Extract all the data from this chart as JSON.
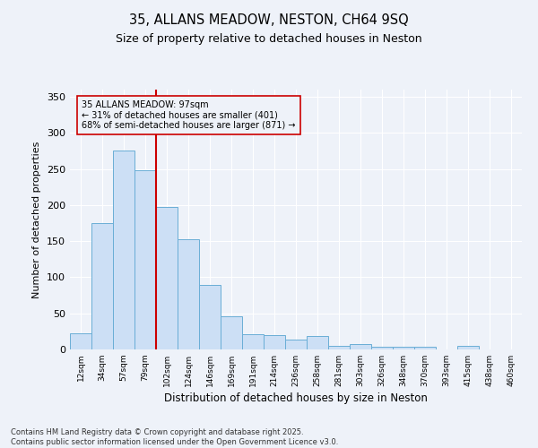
{
  "title_line1": "35, ALLANS MEADOW, NESTON, CH64 9SQ",
  "title_line2": "Size of property relative to detached houses in Neston",
  "xlabel": "Distribution of detached houses by size in Neston",
  "ylabel": "Number of detached properties",
  "footer_line1": "Contains HM Land Registry data © Crown copyright and database right 2025.",
  "footer_line2": "Contains public sector information licensed under the Open Government Licence v3.0.",
  "annotation_line1": "35 ALLANS MEADOW: 97sqm",
  "annotation_line2": "← 31% of detached houses are smaller (401)",
  "annotation_line3": "68% of semi-detached houses are larger (871) →",
  "bar_color": "#ccdff5",
  "bar_edge_color": "#6aaed6",
  "background_color": "#eef2f9",
  "grid_color": "#ffffff",
  "marker_line_color": "#cc0000",
  "annotation_box_color": "#cc0000",
  "categories": [
    "12sqm",
    "34sqm",
    "57sqm",
    "79sqm",
    "102sqm",
    "124sqm",
    "146sqm",
    "169sqm",
    "191sqm",
    "214sqm",
    "236sqm",
    "258sqm",
    "281sqm",
    "303sqm",
    "326sqm",
    "348sqm",
    "370sqm",
    "393sqm",
    "415sqm",
    "438sqm",
    "460sqm"
  ],
  "values": [
    22,
    175,
    275,
    248,
    198,
    153,
    90,
    46,
    21,
    20,
    14,
    19,
    5,
    7,
    4,
    4,
    4,
    0,
    5,
    0,
    0
  ],
  "ylim": [
    0,
    360
  ],
  "yticks": [
    0,
    50,
    100,
    150,
    200,
    250,
    300,
    350
  ],
  "marker_bin_index": 3,
  "figsize": [
    6.0,
    5.0
  ],
  "dpi": 100
}
